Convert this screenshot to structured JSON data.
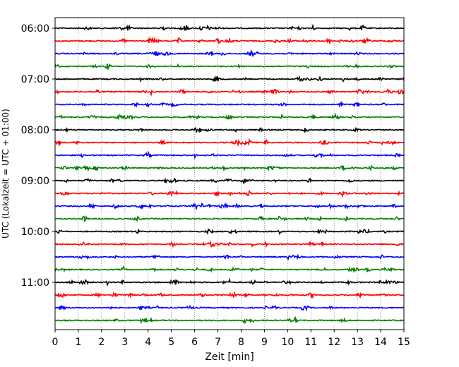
{
  "chart_data": {
    "type": "line",
    "title": "",
    "xlabel": "Zeit  [min]",
    "ylabel": "UTC (Lokalzeit = UTC + 01:00)",
    "xlim": [
      0,
      15
    ],
    "x_ticks": [
      "0",
      "1",
      "2",
      "3",
      "4",
      "5",
      "6",
      "7",
      "8",
      "9",
      "10",
      "11",
      "12",
      "13",
      "14",
      "15"
    ],
    "y_ticks": [
      "06:00",
      "07:00",
      "08:00",
      "09:00",
      "10:00",
      "11:00"
    ],
    "grid": "vertical dotted at each minute",
    "trace_interval_min": 15,
    "trace_colors": [
      "#000000",
      "#ff0000",
      "#0000ff",
      "#008000"
    ],
    "series": [
      {
        "start": "06:00",
        "color": "#000000"
      },
      {
        "start": "06:15",
        "color": "#ff0000"
      },
      {
        "start": "06:30",
        "color": "#0000ff"
      },
      {
        "start": "06:45",
        "color": "#008000"
      },
      {
        "start": "07:00",
        "color": "#000000"
      },
      {
        "start": "07:15",
        "color": "#ff0000"
      },
      {
        "start": "07:30",
        "color": "#0000ff"
      },
      {
        "start": "07:45",
        "color": "#008000"
      },
      {
        "start": "08:00",
        "color": "#000000"
      },
      {
        "start": "08:15",
        "color": "#ff0000"
      },
      {
        "start": "08:30",
        "color": "#0000ff"
      },
      {
        "start": "08:45",
        "color": "#008000"
      },
      {
        "start": "09:00",
        "color": "#000000"
      },
      {
        "start": "09:15",
        "color": "#ff0000"
      },
      {
        "start": "09:30",
        "color": "#0000ff"
      },
      {
        "start": "09:45",
        "color": "#008000"
      },
      {
        "start": "10:00",
        "color": "#000000"
      },
      {
        "start": "10:15",
        "color": "#ff0000"
      },
      {
        "start": "10:30",
        "color": "#0000ff"
      },
      {
        "start": "10:45",
        "color": "#008000"
      },
      {
        "start": "11:00",
        "color": "#000000"
      },
      {
        "start": "11:15",
        "color": "#ff0000"
      },
      {
        "start": "11:30",
        "color": "#0000ff"
      },
      {
        "start": "11:45",
        "color": "#008000"
      }
    ]
  }
}
